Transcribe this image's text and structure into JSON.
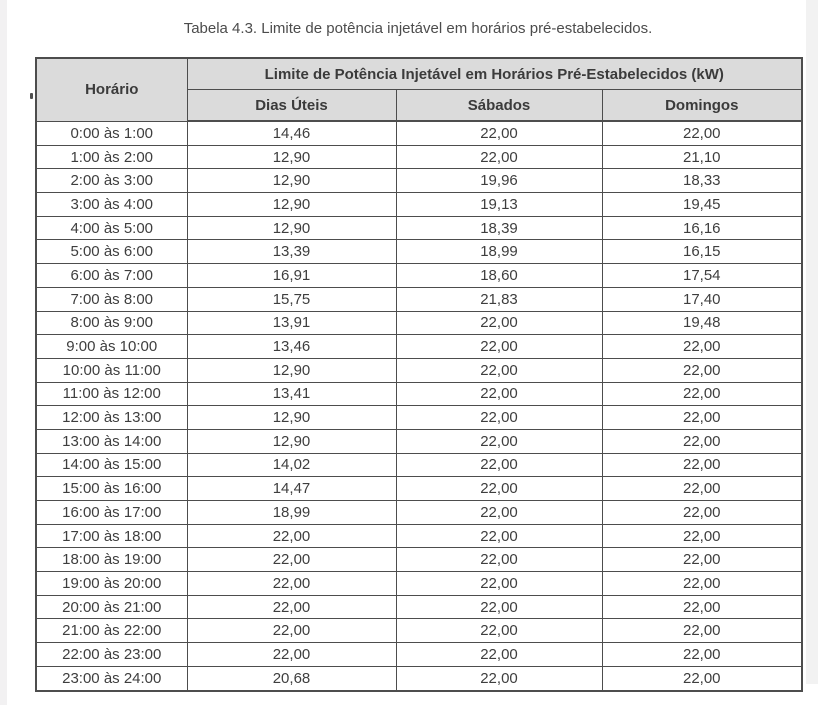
{
  "page": {
    "caption": "Tabela 4.3. Limite de potência injetável em horários pré-estabelecidos."
  },
  "table": {
    "col0_header": "Horário",
    "group_header": "Limite de Potência Injetável em Horários Pré-Estabelecidos (kW)",
    "sub_headers": [
      "Dias Úteis",
      "Sábados",
      "Domingos"
    ],
    "rows": [
      {
        "horario": "0:00 às 1:00",
        "dias_uteis": "14,46",
        "sabados": "22,00",
        "domingos": "22,00"
      },
      {
        "horario": "1:00 às 2:00",
        "dias_uteis": "12,90",
        "sabados": "22,00",
        "domingos": "21,10"
      },
      {
        "horario": "2:00 às 3:00",
        "dias_uteis": "12,90",
        "sabados": "19,96",
        "domingos": "18,33"
      },
      {
        "horario": "3:00 às 4:00",
        "dias_uteis": "12,90",
        "sabados": "19,13",
        "domingos": "19,45"
      },
      {
        "horario": "4:00 às 5:00",
        "dias_uteis": "12,90",
        "sabados": "18,39",
        "domingos": "16,16"
      },
      {
        "horario": "5:00 às 6:00",
        "dias_uteis": "13,39",
        "sabados": "18,99",
        "domingos": "16,15"
      },
      {
        "horario": "6:00 às 7:00",
        "dias_uteis": "16,91",
        "sabados": "18,60",
        "domingos": "17,54"
      },
      {
        "horario": "7:00 às 8:00",
        "dias_uteis": "15,75",
        "sabados": "21,83",
        "domingos": "17,40"
      },
      {
        "horario": "8:00 às 9:00",
        "dias_uteis": "13,91",
        "sabados": "22,00",
        "domingos": "19,48"
      },
      {
        "horario": "9:00 às 10:00",
        "dias_uteis": "13,46",
        "sabados": "22,00",
        "domingos": "22,00"
      },
      {
        "horario": "10:00 às 11:00",
        "dias_uteis": "12,90",
        "sabados": "22,00",
        "domingos": "22,00"
      },
      {
        "horario": "11:00 às 12:00",
        "dias_uteis": "13,41",
        "sabados": "22,00",
        "domingos": "22,00"
      },
      {
        "horario": "12:00 às 13:00",
        "dias_uteis": "12,90",
        "sabados": "22,00",
        "domingos": "22,00"
      },
      {
        "horario": "13:00 às 14:00",
        "dias_uteis": "12,90",
        "sabados": "22,00",
        "domingos": "22,00"
      },
      {
        "horario": "14:00 às 15:00",
        "dias_uteis": "14,02",
        "sabados": "22,00",
        "domingos": "22,00"
      },
      {
        "horario": "15:00 às 16:00",
        "dias_uteis": "14,47",
        "sabados": "22,00",
        "domingos": "22,00"
      },
      {
        "horario": "16:00 às 17:00",
        "dias_uteis": "18,99",
        "sabados": "22,00",
        "domingos": "22,00"
      },
      {
        "horario": "17:00 às 18:00",
        "dias_uteis": "22,00",
        "sabados": "22,00",
        "domingos": "22,00"
      },
      {
        "horario": "18:00 às 19:00",
        "dias_uteis": "22,00",
        "sabados": "22,00",
        "domingos": "22,00"
      },
      {
        "horario": "19:00 às 20:00",
        "dias_uteis": "22,00",
        "sabados": "22,00",
        "domingos": "22,00"
      },
      {
        "horario": "20:00 às 21:00",
        "dias_uteis": "22,00",
        "sabados": "22,00",
        "domingos": "22,00"
      },
      {
        "horario": "21:00 às 22:00",
        "dias_uteis": "22,00",
        "sabados": "22,00",
        "domingos": "22,00"
      },
      {
        "horario": "22:00 às 23:00",
        "dias_uteis": "22,00",
        "sabados": "22,00",
        "domingos": "22,00"
      },
      {
        "horario": "23:00 às 24:00",
        "dias_uteis": "20,68",
        "sabados": "22,00",
        "domingos": "22,00"
      }
    ]
  },
  "colors": {
    "header_bg": "#dbdbdb",
    "border": "#4d4d4d",
    "text": "#3e3e3e",
    "page_edge": "#f2f1f2"
  }
}
